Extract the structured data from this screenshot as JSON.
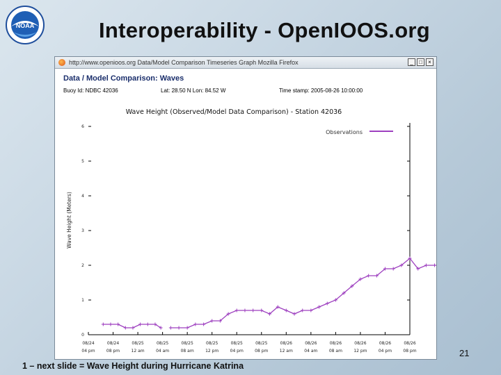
{
  "slide": {
    "title": "Interoperability - OpenIOOS.org",
    "footnote": "1 – next slide = Wave Height during Hurricane Katrina",
    "page_number": "21",
    "logo_text": "NOAA"
  },
  "browser": {
    "title_bar": "http://www.openioos.org   Data/Model Comparison Timeseries Graph   Mozilla Firefox",
    "buttons": [
      "_",
      "□",
      "×"
    ]
  },
  "page": {
    "heading": "Data / Model Comparison: Waves",
    "buoy_id": "Buoy Id: NDBC 42036",
    "lat_lon": "Lat: 28.50 N Lon: 84.52 W",
    "timestamp": "Time stamp: 2005-08-26 10:00:00"
  },
  "colors": {
    "series": "#9d3fbf",
    "axis": "#000000"
  },
  "chart_data": {
    "type": "line",
    "title": "Wave Height (Observed/Model Data Comparison) - Station 42036",
    "ylabel": "Wave Height (Meters)",
    "xlabel": "",
    "ylim": [
      0,
      6
    ],
    "yticks": [
      0,
      1,
      2,
      3,
      4,
      5,
      6
    ],
    "xticks": [
      [
        "08/24",
        "04 pm"
      ],
      [
        "08/24",
        "08 pm"
      ],
      [
        "08/25",
        "12 am"
      ],
      [
        "08/25",
        "04 am"
      ],
      [
        "08/25",
        "08 am"
      ],
      [
        "08/25",
        "12 pm"
      ],
      [
        "08/25",
        "04 pm"
      ],
      [
        "08/25",
        "08 pm"
      ],
      [
        "08/26",
        "12 am"
      ],
      [
        "08/26",
        "04 am"
      ],
      [
        "08/26",
        "08 am"
      ],
      [
        "08/26",
        "12 pm"
      ],
      [
        "08/26",
        "04 pm"
      ],
      [
        "08/26",
        "08 pm"
      ]
    ],
    "legend": {
      "position": "top-right",
      "entries": [
        "Observations"
      ]
    },
    "grid": false,
    "series": [
      {
        "name": "Observations",
        "segments": [
          [
            [
              0.6,
              0.3
            ],
            [
              0.9,
              0.3
            ],
            [
              1.2,
              0.3
            ],
            [
              1.5,
              0.2
            ],
            [
              1.8,
              0.2
            ],
            [
              2.1,
              0.3
            ],
            [
              2.4,
              0.3
            ],
            [
              2.7,
              0.3
            ],
            [
              2.93,
              0.2
            ]
          ],
          [
            [
              3.33,
              0.2
            ],
            [
              3.66,
              0.2
            ],
            [
              4.0,
              0.2
            ],
            [
              4.33,
              0.3
            ],
            [
              4.66,
              0.3
            ],
            [
              5.0,
              0.4
            ],
            [
              5.33,
              0.4
            ],
            [
              5.66,
              0.6
            ],
            [
              6.0,
              0.7
            ],
            [
              6.33,
              0.7
            ],
            [
              6.66,
              0.7
            ],
            [
              7.0,
              0.7
            ],
            [
              7.33,
              0.6
            ],
            [
              7.66,
              0.8
            ],
            [
              8.0,
              0.7
            ],
            [
              8.33,
              0.6
            ],
            [
              8.66,
              0.7
            ],
            [
              9.0,
              0.7
            ],
            [
              9.33,
              0.8
            ],
            [
              9.66,
              0.9
            ],
            [
              10.0,
              1.0
            ],
            [
              10.33,
              1.2
            ],
            [
              10.66,
              1.4
            ],
            [
              11.0,
              1.6
            ],
            [
              11.33,
              1.7
            ],
            [
              11.66,
              1.7
            ],
            [
              12.0,
              1.9
            ],
            [
              12.33,
              1.9
            ],
            [
              12.66,
              2.0
            ],
            [
              13.0,
              2.2
            ],
            [
              13.33,
              1.9
            ],
            [
              13.66,
              2.0
            ],
            [
              14.0,
              2.0
            ],
            [
              14.33,
              2.0
            ],
            [
              14.66,
              2.0
            ],
            [
              15.0,
              2.0
            ],
            [
              15.33,
              2.1
            ],
            [
              15.66,
              1.9
            ]
          ]
        ]
      }
    ]
  }
}
